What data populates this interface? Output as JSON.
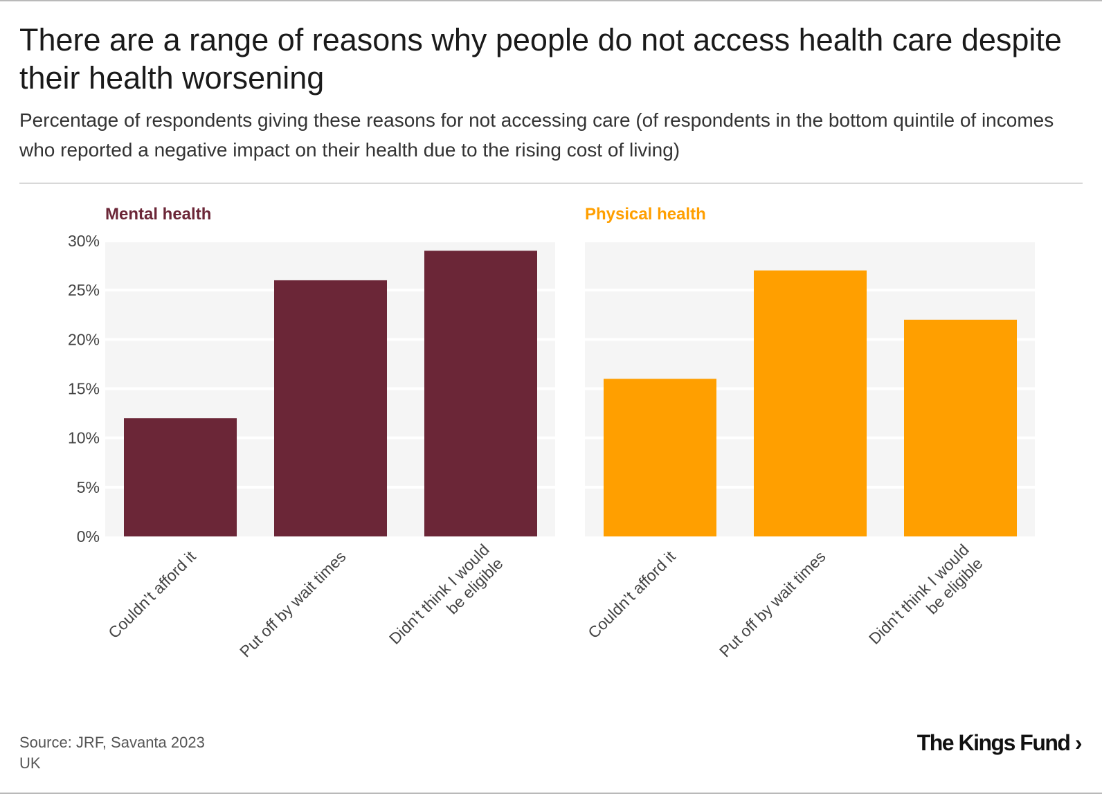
{
  "title": "There are a range of reasons why people do not access health care despite their health worsening",
  "subtitle": "Percentage of respondents giving these reasons for not accessing care (of respondents in the bottom quintile of incomes who reported a negative impact on their health due to the rising cost of living)",
  "source": "Source: JRF, Savanta 2023",
  "region": "UK",
  "logo_text": "The King's Fund",
  "colors": {
    "mental": "#6b2637",
    "physical": "#ff9f00",
    "panel_bg": "#f5f5f5",
    "grid": "#ffffff"
  },
  "chart_data": [
    {
      "type": "bar",
      "title": "Mental health",
      "categories": [
        "Couldn’t afford it",
        "Put off by wait times",
        "Didn’t think I would be eligible"
      ],
      "category_lines": [
        [
          "Couldn’t afford it"
        ],
        [
          "Put off by wait times"
        ],
        [
          "Didn’t think I would",
          "be eligible"
        ]
      ],
      "values": [
        12,
        26,
        29
      ],
      "ylim": [
        0,
        30
      ],
      "yticks": [
        0,
        5,
        10,
        15,
        20,
        25,
        30
      ],
      "ytick_labels": [
        "0%",
        "5%",
        "10%",
        "15%",
        "20%",
        "25%",
        "30%"
      ],
      "xlabel": "",
      "ylabel": "",
      "color": "#6b2637"
    },
    {
      "type": "bar",
      "title": "Physical health",
      "categories": [
        "Couldn’t afford it",
        "Put off by wait times",
        "Didn’t think I would be eligible"
      ],
      "category_lines": [
        [
          "Couldn’t afford it"
        ],
        [
          "Put off by wait times"
        ],
        [
          "Didn’t think I would",
          "be eligible"
        ]
      ],
      "values": [
        16,
        27,
        22
      ],
      "ylim": [
        0,
        30
      ],
      "yticks": [
        0,
        5,
        10,
        15,
        20,
        25,
        30
      ],
      "xlabel": "",
      "ylabel": "",
      "color": "#ff9f00"
    }
  ]
}
